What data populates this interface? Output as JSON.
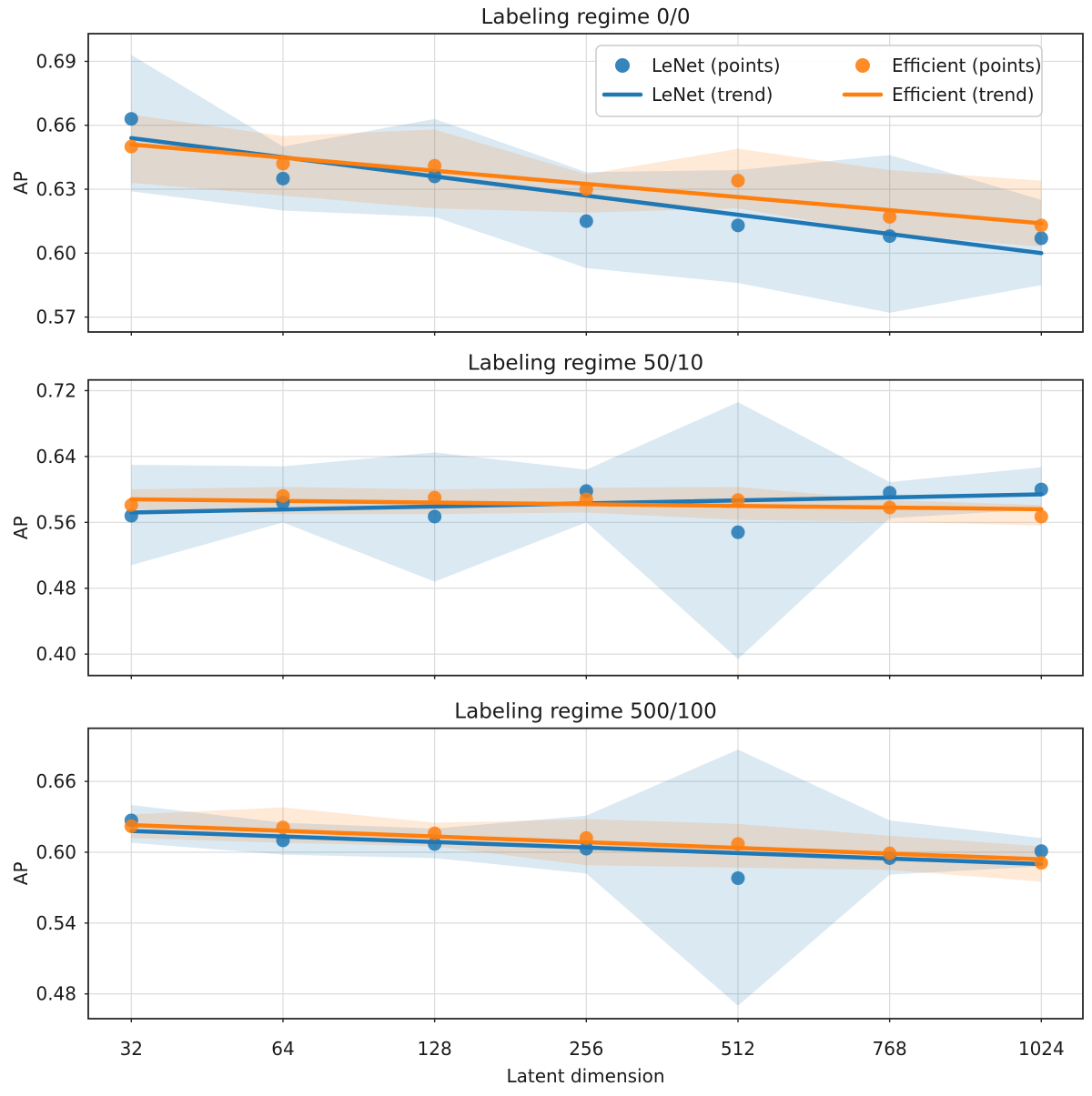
{
  "figure": {
    "xlabel": "Latent dimension",
    "ylabel": "AP",
    "x_tick_labels": [
      "32",
      "64",
      "128",
      "256",
      "512",
      "768",
      "1024"
    ],
    "colors": {
      "lenet": "#1f77b4",
      "efficient": "#ff7f0e",
      "grid": "#dcdcdc",
      "frame": "#262626",
      "text": "#1a1a1a",
      "legend_border": "#cccccc",
      "background": "#ffffff"
    },
    "legend": {
      "items": [
        {
          "label": "LeNet (points)",
          "type": "point",
          "color": "#1f77b4"
        },
        {
          "label": "LeNet (trend)",
          "type": "line",
          "color": "#1f77b4"
        },
        {
          "label": "Efficient (points)",
          "type": "point",
          "color": "#ff7f0e"
        },
        {
          "label": "Efficient (trend)",
          "type": "line",
          "color": "#ff7f0e"
        }
      ]
    }
  },
  "chart_data": [
    {
      "type": "scatter",
      "title": "Labeling regime 0/0",
      "xlabel": "Latent dimension",
      "ylabel": "AP",
      "x": [
        32,
        64,
        128,
        256,
        512,
        768,
        1024
      ],
      "ylim": [
        0.563,
        0.703
      ],
      "yticks": [
        0.57,
        0.6,
        0.63,
        0.66,
        0.69
      ],
      "grid": true,
      "legend_position": "upper right",
      "series": [
        {
          "name": "LeNet",
          "color": "#1f77b4",
          "points": [
            0.663,
            0.635,
            0.636,
            0.615,
            0.613,
            0.608,
            0.607
          ],
          "trend": [
            0.654,
            0.6
          ],
          "band_high": [
            0.693,
            0.65,
            0.663,
            0.638,
            0.639,
            0.646,
            0.625
          ],
          "band_low": [
            0.629,
            0.62,
            0.617,
            0.593,
            0.586,
            0.572,
            0.585
          ]
        },
        {
          "name": "Efficient",
          "color": "#ff7f0e",
          "points": [
            0.65,
            0.642,
            0.641,
            0.63,
            0.634,
            0.617,
            0.613
          ],
          "trend": [
            0.651,
            0.614
          ],
          "band_high": [
            0.665,
            0.655,
            0.658,
            0.637,
            0.649,
            0.639,
            0.634
          ],
          "band_low": [
            0.633,
            0.627,
            0.621,
            0.619,
            0.621,
            0.609,
            0.603
          ]
        }
      ]
    },
    {
      "type": "scatter",
      "title": "Labeling regime 50/10",
      "xlabel": "Latent dimension",
      "ylabel": "AP",
      "x": [
        32,
        64,
        128,
        256,
        512,
        768,
        1024
      ],
      "ylim": [
        0.374,
        0.733
      ],
      "yticks": [
        0.4,
        0.48,
        0.56,
        0.64,
        0.72
      ],
      "grid": true,
      "series": [
        {
          "name": "LeNet",
          "color": "#1f77b4",
          "points": [
            0.568,
            0.584,
            0.567,
            0.598,
            0.548,
            0.596,
            0.6
          ],
          "trend": [
            0.572,
            0.594
          ],
          "band_high": [
            0.63,
            0.628,
            0.645,
            0.624,
            0.706,
            0.609,
            0.627
          ],
          "band_low": [
            0.508,
            0.56,
            0.488,
            0.56,
            0.394,
            0.565,
            0.576
          ]
        },
        {
          "name": "Efficient",
          "color": "#ff7f0e",
          "points": [
            0.581,
            0.592,
            0.59,
            0.588,
            0.587,
            0.578,
            0.567
          ],
          "trend": [
            0.588,
            0.576
          ],
          "band_high": [
            0.6,
            0.603,
            0.6,
            0.602,
            0.603,
            0.587,
            0.581
          ],
          "band_low": [
            0.576,
            0.57,
            0.57,
            0.572,
            0.563,
            0.561,
            0.556
          ]
        }
      ]
    },
    {
      "type": "scatter",
      "title": "Labeling regime 500/100",
      "xlabel": "Latent dimension",
      "ylabel": "AP",
      "x": [
        32,
        64,
        128,
        256,
        512,
        768,
        1024
      ],
      "ylim": [
        0.459,
        0.705
      ],
      "yticks": [
        0.48,
        0.54,
        0.6,
        0.66
      ],
      "grid": true,
      "series": [
        {
          "name": "LeNet",
          "color": "#1f77b4",
          "points": [
            0.627,
            0.61,
            0.607,
            0.603,
            0.578,
            0.595,
            0.601
          ],
          "trend": [
            0.618,
            0.59
          ],
          "band_high": [
            0.64,
            0.625,
            0.62,
            0.631,
            0.687,
            0.627,
            0.612
          ],
          "band_low": [
            0.608,
            0.598,
            0.595,
            0.582,
            0.47,
            0.581,
            0.588
          ]
        },
        {
          "name": "Efficient",
          "color": "#ff7f0e",
          "points": [
            0.622,
            0.621,
            0.616,
            0.612,
            0.607,
            0.599,
            0.591
          ],
          "trend": [
            0.623,
            0.594
          ],
          "band_high": [
            0.632,
            0.638,
            0.625,
            0.628,
            0.624,
            0.614,
            0.605
          ],
          "band_low": [
            0.612,
            0.608,
            0.605,
            0.589,
            0.587,
            0.585,
            0.575
          ]
        }
      ]
    }
  ]
}
